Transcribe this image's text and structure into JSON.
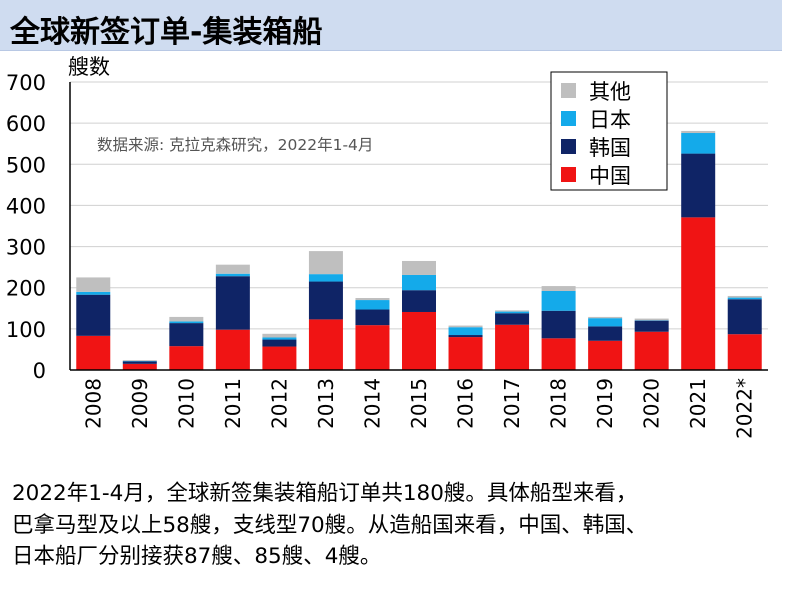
{
  "title": "全球新签订单-集装箱船",
  "chart_data": {
    "type": "bar",
    "stacked": true,
    "ylabel": "艘数",
    "ylim": [
      0,
      700
    ],
    "yticks": [
      0,
      100,
      200,
      300,
      400,
      500,
      600,
      700
    ],
    "grid": true,
    "source_note": "数据来源: 克拉克森研究，2022年1-4月",
    "categories": [
      "2008",
      "2009",
      "2010",
      "2011",
      "2012",
      "2013",
      "2014",
      "2015",
      "2016",
      "2017",
      "2018",
      "2019",
      "2020",
      "2021",
      "2022*"
    ],
    "series": [
      {
        "name": "中国",
        "color": "#f01414",
        "values": [
          83,
          15,
          58,
          98,
          57,
          123,
          109,
          141,
          80,
          110,
          77,
          71,
          93,
          371,
          87
        ]
      },
      {
        "name": "韩国",
        "color": "#0f2466",
        "values": [
          100,
          6,
          56,
          130,
          17,
          92,
          38,
          53,
          5,
          28,
          67,
          35,
          27,
          155,
          85
        ]
      },
      {
        "name": "日本",
        "color": "#14aaea",
        "values": [
          7,
          1,
          4,
          6,
          5,
          18,
          23,
          37,
          19,
          4,
          48,
          20,
          1,
          50,
          4
        ]
      },
      {
        "name": "其他",
        "color": "#bfbfbf",
        "values": [
          35,
          2,
          11,
          22,
          9,
          56,
          5,
          34,
          4,
          3,
          12,
          3,
          4,
          5,
          4
        ]
      }
    ],
    "legend_order": [
      "其他",
      "日本",
      "韩国",
      "中国"
    ],
    "legend_position": "top-right"
  },
  "caption_lines": [
    "2022年1-4月，全球新签集装箱船订单共180艘。具体船型来看，",
    "巴拿马型及以上58艘，支线型70艘。从造船国来看，中国、韩国、",
    "日本船厂分别接获87艘、85艘、4艘。"
  ]
}
